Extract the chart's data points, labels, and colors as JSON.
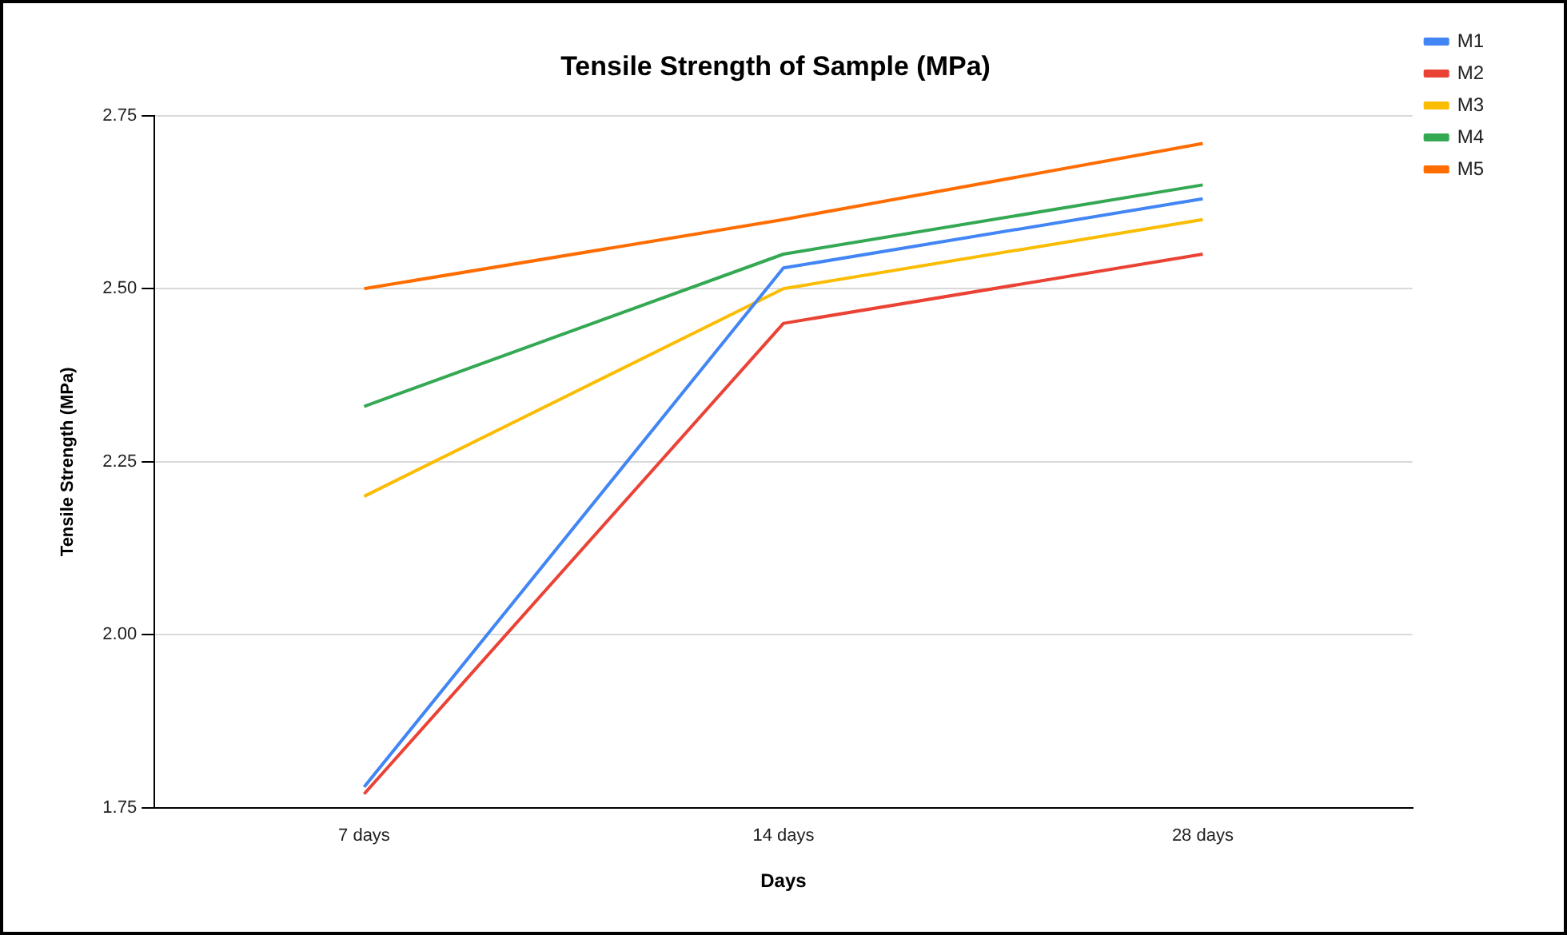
{
  "chart_data": {
    "type": "line",
    "title": "Tensile Strength of Sample (MPa)",
    "xlabel": "Days",
    "ylabel": "Tensile Strength (MPa)",
    "categories": [
      "7 days",
      "14 days",
      "28 days"
    ],
    "series": [
      {
        "name": "M1",
        "color": "#4285f4",
        "values": [
          1.78,
          2.53,
          2.63
        ]
      },
      {
        "name": "M2",
        "color": "#ea4335",
        "values": [
          1.77,
          2.45,
          2.55
        ]
      },
      {
        "name": "M3",
        "color": "#fbbc04",
        "values": [
          2.2,
          2.5,
          2.6
        ]
      },
      {
        "name": "M4",
        "color": "#34a853",
        "values": [
          2.33,
          2.55,
          2.65
        ]
      },
      {
        "name": "M5",
        "color": "#ff6d01",
        "values": [
          2.5,
          2.6,
          2.71
        ]
      }
    ],
    "ylim": [
      1.75,
      2.75
    ],
    "yticks": [
      {
        "value": 1.75,
        "label": "1.75"
      },
      {
        "value": 2,
        "label": "2.00"
      },
      {
        "value": 2.25,
        "label": "2.25"
      },
      {
        "value": 2.5,
        "label": "2.50"
      },
      {
        "value": 2.75,
        "label": "2.75"
      }
    ],
    "grid": "y",
    "legend": "top right",
    "marker": "none",
    "line_style": "solid"
  }
}
